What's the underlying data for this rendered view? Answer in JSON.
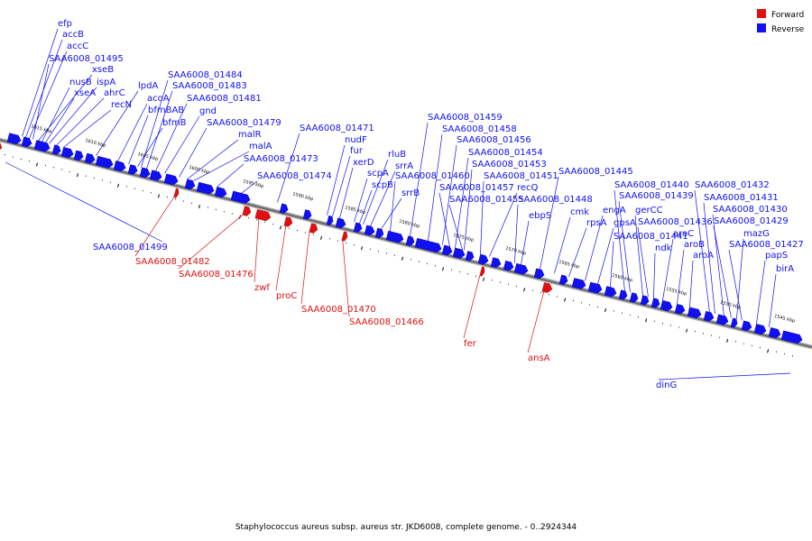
{
  "legend": {
    "forward": "Forward",
    "reverse": "Reverse"
  },
  "colors": {
    "forward": "#e01010",
    "reverse": "#1010f0",
    "backbone": "#707070"
  },
  "caption": "Staphylococcus aureus subsp. aureus str. JKD6008, complete genome. - 0..2924344",
  "ticks": [
    "1615 kbp",
    "1610 kbp",
    "1605 kbp",
    "1600 kbp",
    "1595 kbp",
    "1590 kbp",
    "1585 kbp",
    "1580 kbp",
    "1575 kbp",
    "1570 kbp",
    "1565 kbp",
    "1560 kbp",
    "1555 kbp",
    "1550 kbp",
    "1545 kbp"
  ],
  "reverse_labels": [
    "efp",
    "accB",
    "accC",
    "SAA6008_01495",
    "xseB",
    "nusB",
    "ispA",
    "xseA",
    "ahrC",
    "recN",
    "lpdA",
    "SAA6008_01484",
    "SAA6008_01483",
    "acoA",
    "SAA6008_01481",
    "bfmBAB",
    "gnd",
    "bfmB",
    "SAA6008_01479",
    "malR",
    "malA",
    "SAA6008_01473",
    "SAA6008_01474",
    "SAA6008_01471",
    "nudF",
    "fur",
    "xerD",
    "rluB",
    "srrA",
    "scpA",
    "scpB",
    "srrB",
    "SAA6008_01460",
    "SAA6008_01459",
    "SAA6008_01458",
    "SAA6008_01456",
    "SAA6008_01454",
    "SAA6008_01453",
    "SAA6008_01451",
    "SAA6008_01457",
    "recQ",
    "SAA6008_01455",
    "SAA6008_01448",
    "ebpS",
    "SAA6008_01445",
    "cmk",
    "rpsA",
    "engA",
    "gpsA",
    "SAA6008_01441",
    "SAA6008_01440",
    "SAA6008_01439",
    "gerCC",
    "SAA6008_01436",
    "ndk",
    "aroC",
    "aroB",
    "aroA",
    "SAA6008_01432",
    "SAA6008_01431",
    "SAA6008_01430",
    "SAA6008_01429",
    "mazG",
    "SAA6008_01427",
    "papS",
    "birA",
    "SAA6008_01499",
    "dinG"
  ],
  "forward_labels": [
    "SAA6008_01482",
    "SAA6008_01476",
    "zwf",
    "proC",
    "SAA6008_01470",
    "SAA6008_01466",
    "fer",
    "ansA"
  ]
}
